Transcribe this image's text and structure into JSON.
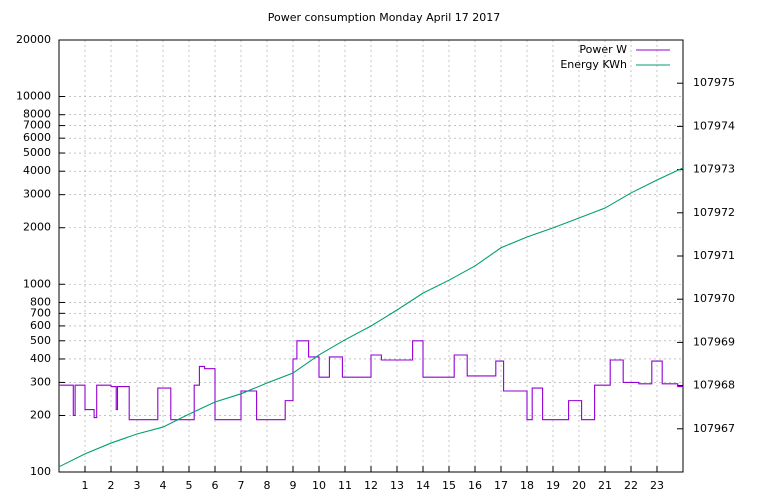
{
  "chart_data": {
    "type": "line",
    "title": "Power consumption Monday April 17 2017",
    "xlim": [
      0,
      24
    ],
    "xticks": [
      1,
      2,
      3,
      4,
      5,
      6,
      7,
      8,
      9,
      10,
      11,
      12,
      13,
      14,
      15,
      16,
      17,
      18,
      19,
      20,
      21,
      22,
      23
    ],
    "ylim": [
      100,
      20000
    ],
    "yscale": "log",
    "yticks": [
      100,
      200,
      300,
      400,
      500,
      600,
      700,
      800,
      1000,
      2000,
      3000,
      4000,
      5000,
      6000,
      7000,
      8000,
      10000,
      20000
    ],
    "y2lim": [
      107966,
      107976
    ],
    "y2ticks": [
      107967,
      107968,
      107969,
      107970,
      107971,
      107972,
      107973,
      107974,
      107975
    ],
    "grid": true,
    "legend": "top-right",
    "series": [
      {
        "name": "Power W",
        "color": "#9400d3",
        "axis": "y",
        "x": [
          0,
          0.55,
          0.55,
          0.62,
          0.62,
          1,
          1,
          1.35,
          1.35,
          1.45,
          1.45,
          2,
          2,
          2.2,
          2.2,
          2.25,
          2.25,
          2.7,
          2.7,
          3.8,
          3.8,
          4.3,
          4.3,
          5.2,
          5.2,
          5.4,
          5.4,
          5.6,
          5.6,
          6,
          6,
          7,
          7,
          7.6,
          7.6,
          8.7,
          8.7,
          9,
          9,
          9.15,
          9.15,
          9.6,
          9.6,
          10,
          10,
          10.4,
          10.4,
          10.9,
          10.9,
          12,
          12,
          12.4,
          12.4,
          13.6,
          13.6,
          14,
          14,
          15.2,
          15.2,
          15.7,
          15.7,
          16.8,
          16.8,
          17.1,
          17.1,
          18,
          18,
          18.2,
          18.2,
          18.6,
          18.6,
          19.6,
          19.6,
          20.1,
          20.1,
          20.6,
          20.6,
          21.2,
          21.2,
          21.7,
          21.7,
          22.3,
          22.3,
          22.8,
          22.8,
          23.2,
          23.2,
          23.8,
          23.8,
          24
        ],
        "values": [
          290,
          290,
          200,
          200,
          290,
          290,
          215,
          215,
          195,
          195,
          290,
          290,
          285,
          285,
          215,
          215,
          285,
          285,
          190,
          190,
          280,
          280,
          190,
          190,
          290,
          290,
          365,
          365,
          355,
          355,
          190,
          190,
          270,
          270,
          190,
          190,
          240,
          240,
          400,
          400,
          500,
          500,
          410,
          410,
          320,
          320,
          410,
          410,
          320,
          320,
          420,
          420,
          395,
          395,
          500,
          500,
          320,
          320,
          420,
          420,
          325,
          325,
          390,
          390,
          270,
          270,
          190,
          190,
          280,
          280,
          190,
          190,
          240,
          240,
          190,
          190,
          290,
          290,
          395,
          395,
          300,
          300,
          295,
          295,
          390,
          390,
          295,
          295,
          285,
          285
        ]
      },
      {
        "name": "Energy KWh",
        "color": "#009e73",
        "axis": "y2",
        "x": [
          0,
          1,
          2,
          3,
          4,
          5,
          6,
          7,
          8,
          9,
          10,
          11,
          12,
          13,
          14,
          15,
          16,
          17,
          18,
          19,
          20,
          21,
          22,
          23,
          24
        ],
        "values": [
          107966.12,
          107966.42,
          107966.67,
          107966.88,
          107967.04,
          107967.34,
          107967.62,
          107967.81,
          107968.06,
          107968.29,
          107968.71,
          107969.06,
          107969.38,
          107969.75,
          107970.14,
          107970.44,
          107970.77,
          107971.19,
          107971.44,
          107971.65,
          107971.88,
          107972.11,
          107972.46,
          107972.76,
          107973.04
        ]
      }
    ]
  }
}
